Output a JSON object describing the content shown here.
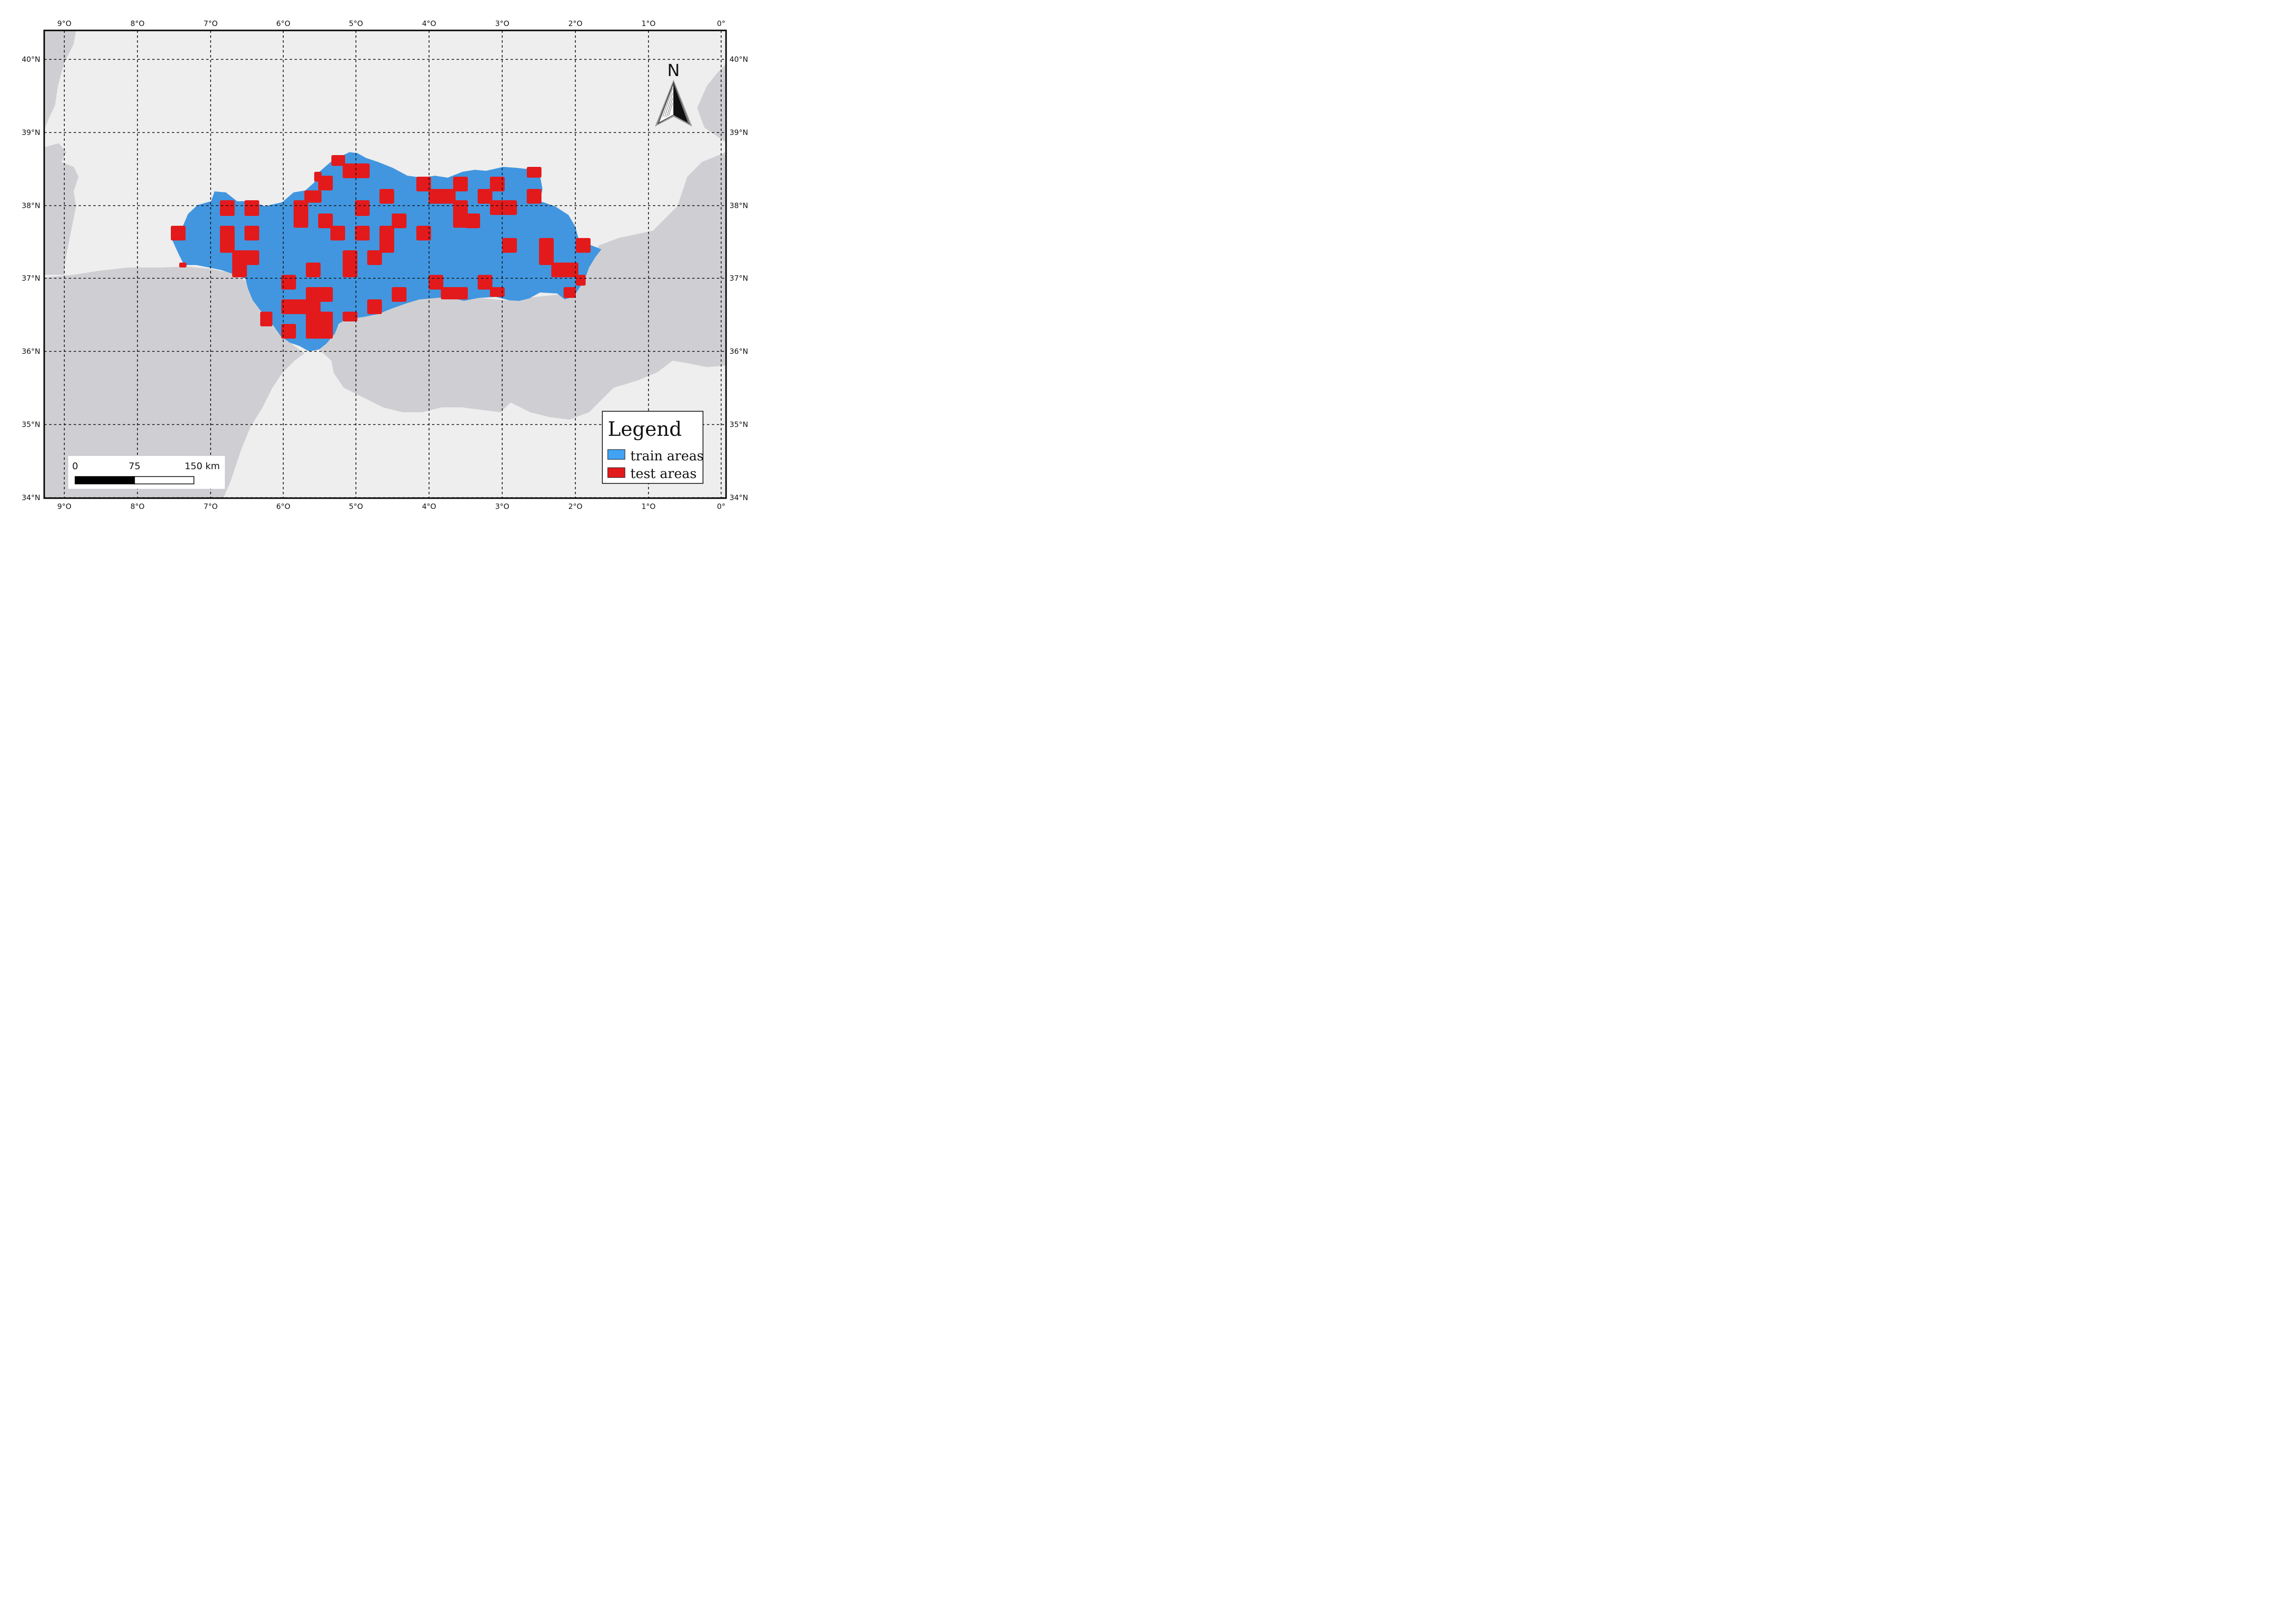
{
  "map": {
    "top_labels": [
      "9°O",
      "8°O",
      "7°O",
      "6°O",
      "5°O",
      "4°O",
      "3°O",
      "2°O",
      "1°O",
      "0°"
    ],
    "bottom_labels": [
      "9°O",
      "8°O",
      "7°O",
      "6°O",
      "5°O",
      "4°O",
      "3°O",
      "2°O",
      "1°O",
      "0°"
    ],
    "left_labels": [
      "40°N",
      "39°N",
      "38°N",
      "37°N",
      "36°N",
      "35°N",
      "34°N"
    ],
    "right_labels": [
      "40°N",
      "39°N",
      "38°N",
      "37°N",
      "36°N",
      "35°N",
      "34°N"
    ],
    "north_arrow": {
      "letter": "N",
      "icon": "north-arrow-icon"
    },
    "scale_bar": {
      "labels": [
        "0",
        "75",
        "150 km"
      ]
    },
    "legend": {
      "title": "Legend",
      "items": [
        {
          "label": "train areas",
          "color": "#4196df"
        },
        {
          "label": "test areas",
          "color": "#e31a1c"
        }
      ]
    },
    "colors": {
      "land": "#eeeeee",
      "sea": "#cfcfd3",
      "train": "#4196df",
      "test": "#e31a1c"
    }
  }
}
